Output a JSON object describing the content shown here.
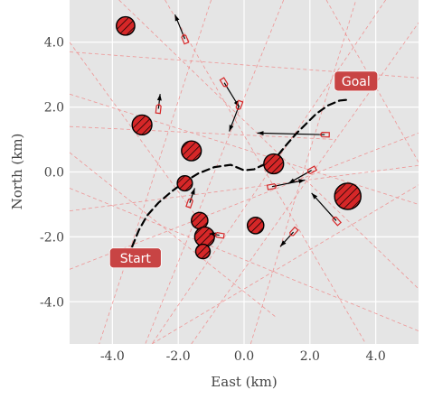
{
  "chart_data": {
    "type": "scatter",
    "xlabel": "East (km)",
    "ylabel": "North (km)",
    "xlim": [
      -5.3,
      5.3
    ],
    "ylim": [
      -5.3,
      5.3
    ],
    "xticks": [
      -4,
      -2,
      0,
      2,
      4
    ],
    "yticks": [
      -4,
      -2,
      0,
      2,
      4
    ],
    "xtick_labels": [
      "-4.0",
      "-2.0",
      "0.0",
      "2.0",
      "4.0"
    ],
    "ytick_labels": [
      "-4.0",
      "-2.0",
      "0.0",
      "2.0",
      "4.0"
    ],
    "grid": true,
    "colors": {
      "background": "#e5e5e5",
      "grid": "#ffffff",
      "obstacle_fill": "#d62728",
      "obstacle_edge": "#000000",
      "lane": "#f08080",
      "vessel": "#d62728",
      "velocity_arrow": "#000000",
      "path": "#000000",
      "callout_fill": "#c84444",
      "callout_text": "#ffffff"
    },
    "annotations": {
      "start": {
        "text": "Start",
        "x": -3.3,
        "y": -2.65
      },
      "goal": {
        "text": "Goal",
        "x": 3.4,
        "y": 2.8
      }
    },
    "planned_path": {
      "style": "dashed",
      "x": [
        -3.4,
        -3.2,
        -2.95,
        -2.6,
        -2.2,
        -1.8,
        -1.4,
        -0.9,
        -0.4,
        0.0,
        0.3,
        0.65,
        1.0,
        1.3,
        1.6,
        1.9,
        2.2,
        2.55,
        2.9,
        3.1
      ],
      "y": [
        -2.3,
        -1.8,
        -1.35,
        -0.95,
        -0.6,
        -0.3,
        -0.05,
        0.15,
        0.22,
        0.05,
        0.08,
        0.25,
        0.48,
        0.85,
        1.2,
        1.5,
        1.8,
        2.05,
        2.2,
        2.22
      ]
    },
    "obstacles": [
      {
        "x": -3.6,
        "y": 4.5,
        "r": 0.28
      },
      {
        "x": -3.1,
        "y": 1.45,
        "r": 0.3
      },
      {
        "x": -1.6,
        "y": 0.65,
        "r": 0.3
      },
      {
        "x": -1.8,
        "y": -0.35,
        "r": 0.23
      },
      {
        "x": -1.35,
        "y": -1.5,
        "r": 0.25
      },
      {
        "x": -1.2,
        "y": -2.0,
        "r": 0.3
      },
      {
        "x": -1.25,
        "y": -2.45,
        "r": 0.22
      },
      {
        "x": 0.35,
        "y": -1.65,
        "r": 0.25
      },
      {
        "x": 0.9,
        "y": 0.25,
        "r": 0.3
      },
      {
        "x": 3.15,
        "y": -0.75,
        "r": 0.4
      }
    ],
    "vessels": [
      {
        "x": -1.8,
        "y": 4.1,
        "dx": -0.3,
        "dy": 0.75
      },
      {
        "x": -2.6,
        "y": 1.95,
        "dx": 0.05,
        "dy": 0.45
      },
      {
        "x": -0.6,
        "y": 2.75,
        "dx": 0.45,
        "dy": -0.75
      },
      {
        "x": -0.15,
        "y": 2.05,
        "dx": -0.3,
        "dy": -0.8
      },
      {
        "x": 2.45,
        "y": 1.15,
        "dx": -2.05,
        "dy": 0.05
      },
      {
        "x": -1.65,
        "y": -0.95,
        "dx": 0.15,
        "dy": 0.45
      },
      {
        "x": 0.85,
        "y": -0.45,
        "dx": 1.0,
        "dy": 0.2
      },
      {
        "x": 2.05,
        "y": 0.05,
        "dx": -0.7,
        "dy": -0.4
      },
      {
        "x": 2.8,
        "y": -1.5,
        "dx": -0.75,
        "dy": 0.85
      },
      {
        "x": 1.5,
        "y": -1.85,
        "dx": -0.4,
        "dy": -0.45
      },
      {
        "x": -0.75,
        "y": -1.95,
        "dx": -0.3,
        "dy": 0.05
      }
    ],
    "lanes": [
      {
        "x1": -5.3,
        "y1": 4.0,
        "x2": -1.0,
        "y2": -2.0
      },
      {
        "x1": -5.3,
        "y1": 3.7,
        "x2": 5.3,
        "y2": 2.9
      },
      {
        "x1": -5.3,
        "y1": 1.4,
        "x2": 2.8,
        "y2": 1.0
      },
      {
        "x1": -5.3,
        "y1": 0.6,
        "x2": 1.0,
        "y2": -4.5
      },
      {
        "x1": -5.3,
        "y1": -0.5,
        "x2": 5.3,
        "y2": -4.9
      },
      {
        "x1": -5.3,
        "y1": -1.2,
        "x2": 5.3,
        "y2": 0.2
      },
      {
        "x1": -3.8,
        "y1": 5.3,
        "x2": 5.3,
        "y2": -3.6
      },
      {
        "x1": -2.4,
        "y1": 5.3,
        "x2": 3.7,
        "y2": -5.3
      },
      {
        "x1": -1.0,
        "y1": 5.3,
        "x2": -4.4,
        "y2": -5.3
      },
      {
        "x1": 1.2,
        "y1": 5.3,
        "x2": -3.0,
        "y2": -5.3
      },
      {
        "x1": 4.3,
        "y1": 5.3,
        "x2": -2.8,
        "y2": -5.3
      },
      {
        "x1": 2.5,
        "y1": 5.3,
        "x2": 5.3,
        "y2": 0.3
      },
      {
        "x1": -5.3,
        "y1": -3.0,
        "x2": 5.3,
        "y2": 1.2
      },
      {
        "x1": -1.6,
        "y1": -5.3,
        "x2": 5.3,
        "y2": 4.6
      },
      {
        "x1": 0.2,
        "y1": -5.3,
        "x2": 3.4,
        "y2": 5.3
      },
      {
        "x1": -5.3,
        "y1": 2.4,
        "x2": 5.3,
        "y2": -1.0
      },
      {
        "x1": -2.8,
        "y1": -5.3,
        "x2": 5.3,
        "y2": -0.4
      }
    ]
  }
}
